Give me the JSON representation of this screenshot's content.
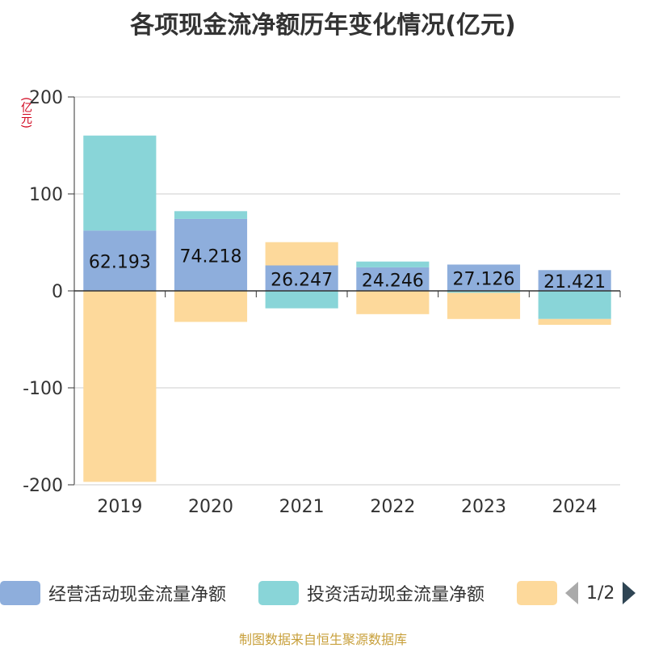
{
  "title": "各项现金流净额历年变化情况(亿元)",
  "unit_label": "(亿元)",
  "source": "制图数据来自恒生聚源数据库",
  "legend": {
    "items": [
      {
        "label": "经营活动现金流量净额",
        "color": "#8eaedc"
      },
      {
        "label": "投资活动现金流量净额",
        "color": "#89d5d8"
      },
      {
        "label": "",
        "color": "#fdd99b"
      }
    ],
    "page": "1/2"
  },
  "chart_data": {
    "type": "bar",
    "stacked": true,
    "categories": [
      "2019",
      "2020",
      "2021",
      "2022",
      "2023",
      "2024"
    ],
    "ylim": [
      -200,
      200
    ],
    "yticks": [
      -200,
      -100,
      0,
      100,
      200
    ],
    "grid": true,
    "series": [
      {
        "name": "经营活动现金流量净额",
        "color": "#8eaedc",
        "values": [
          62.193,
          74.218,
          26.247,
          24.246,
          27.126,
          21.421
        ],
        "labels": [
          "62.193",
          "74.218",
          "26.247",
          "24.246",
          "27.126",
          "21.421"
        ]
      },
      {
        "name": "投资活动现金流量净额",
        "color": "#89d5d8",
        "values": [
          98,
          8,
          -18,
          6,
          -2,
          -29
        ]
      },
      {
        "color": "#fdd99b",
        "values": [
          -197,
          -32,
          24,
          -24,
          -27,
          -6
        ]
      }
    ]
  }
}
